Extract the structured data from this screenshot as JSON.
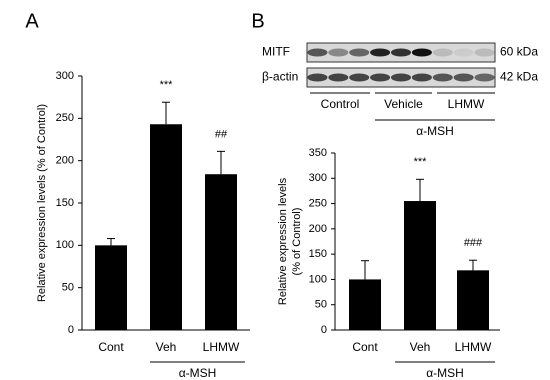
{
  "chart_data": [
    {
      "type": "bar",
      "panel": "A",
      "ylabel": [
        "Relative expression levels (% of Control)"
      ],
      "categories": [
        "Cont",
        "Veh",
        "LHMW"
      ],
      "values": [
        100,
        243,
        184
      ],
      "errors": [
        8,
        26,
        27
      ],
      "annotations": [
        null,
        "***",
        "##"
      ],
      "group_label": "α-MSH",
      "color": "#000000",
      "ylim": [
        0,
        300
      ],
      "yticks": [
        0,
        50,
        100,
        150,
        200,
        250,
        300
      ]
    },
    {
      "type": "bar",
      "panel": "B",
      "ylabel": [
        "Relative expression levels",
        "(% of Control)"
      ],
      "categories": [
        "Cont",
        "Veh",
        "LHMW"
      ],
      "values": [
        100,
        255,
        118
      ],
      "errors": [
        37,
        43,
        20
      ],
      "annotations": [
        null,
        "***",
        "###"
      ],
      "group_label": "α-MSH",
      "color": "#000000",
      "ylim": [
        0,
        350
      ],
      "yticks": [
        0,
        50,
        100,
        150,
        200,
        250,
        300,
        350
      ],
      "blot": {
        "rows": [
          {
            "label": "MITF",
            "size": "60 kDa"
          },
          {
            "label": "β-actin",
            "size": "42 kDa"
          }
        ],
        "groups": [
          "Control",
          "Vehicle",
          "LHMW"
        ],
        "treatment": "α-MSH"
      }
    }
  ]
}
